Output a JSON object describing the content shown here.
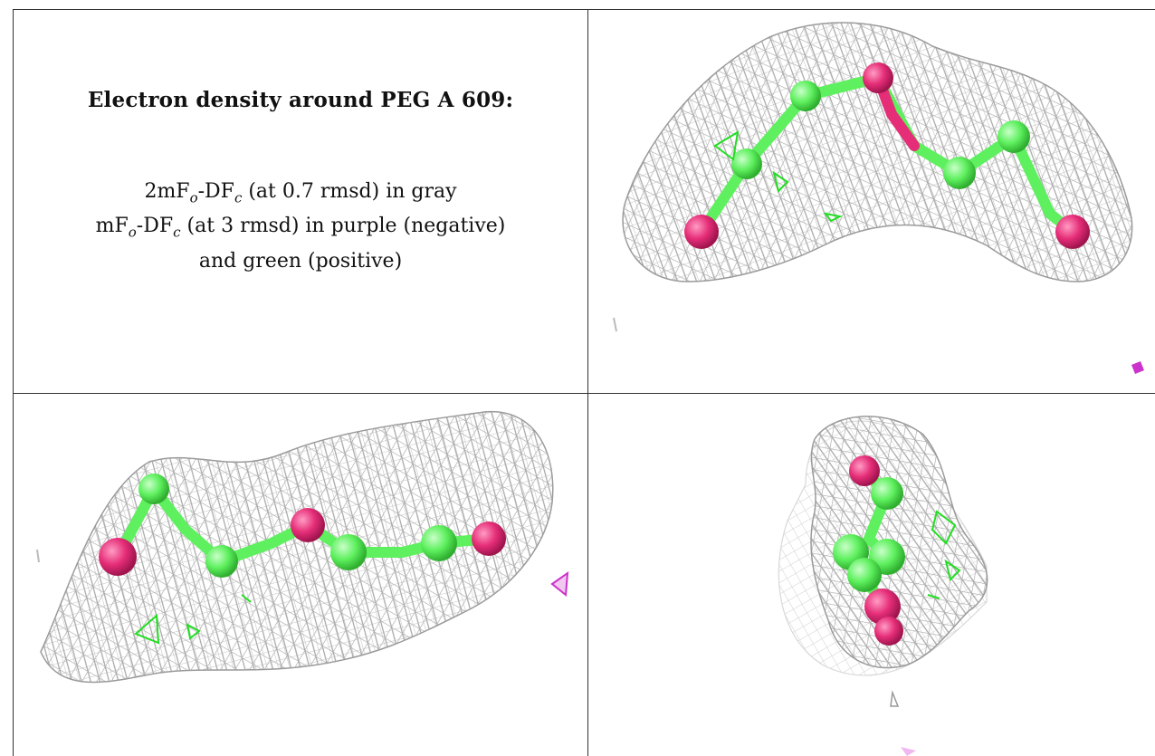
{
  "description_panel": {
    "title": "Electron density around PEG A 609:",
    "map_2fofc": {
      "prefix": "2mF",
      "sub_o": "o",
      "mid": "-DF",
      "sub_c": "c",
      "suffix": " (at 0.7 rmsd) in gray"
    },
    "map_fofc": {
      "prefix": "mF",
      "sub_o": "o",
      "mid": "-DF",
      "sub_c": "c",
      "suffix": " (at 3 rmsd) in purple (negative)"
    },
    "map_fofc_cont": "and green (positive)"
  },
  "colors": {
    "mesh_2fofc": "#a8a8a8",
    "carbon_atoms": "#5ef05e",
    "oxygen_atoms": "#e62e78",
    "positive_difference": "#22dd22",
    "negative_difference": "#cc33cc",
    "grid_lines": "#333333"
  },
  "views": [
    {
      "name": "view-top-right",
      "description": "PEG A 609"
    },
    {
      "name": "view-bottom-left",
      "description": "PEG A 609"
    },
    {
      "name": "view-bottom-right",
      "description": "PEG A 609"
    }
  ]
}
